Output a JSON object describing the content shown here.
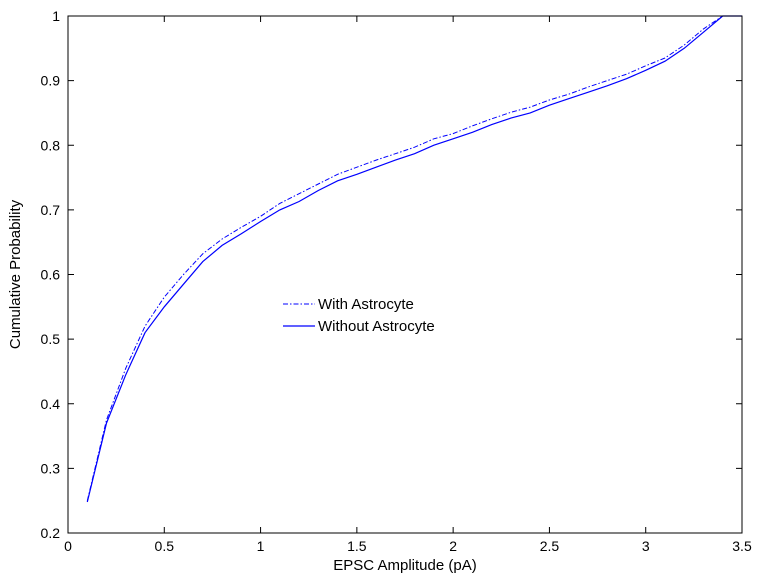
{
  "chart_data": {
    "type": "line",
    "title": "",
    "xlabel": "EPSC Amplitude (pA)",
    "ylabel": "Cumulative Probability",
    "xlim": [
      0,
      3.5
    ],
    "ylim": [
      0.2,
      1
    ],
    "xticks": [
      "0",
      "0.5",
      "1",
      "1.5",
      "2",
      "2.5",
      "3",
      "3.5"
    ],
    "yticks": [
      "0.2",
      "0.3",
      "0.4",
      "0.5",
      "0.6",
      "0.7",
      "0.8",
      "0.9",
      "1"
    ],
    "grid": false,
    "legend_position": "center",
    "series": [
      {
        "name": "With Astrocyte",
        "style": "dash-dot",
        "color": "#0000ff",
        "x": [
          0.1,
          0.2,
          0.3,
          0.4,
          0.5,
          0.6,
          0.7,
          0.8,
          0.9,
          1.0,
          1.1,
          1.2,
          1.3,
          1.4,
          1.5,
          1.6,
          1.7,
          1.8,
          1.9,
          2.0,
          2.1,
          2.2,
          2.3,
          2.4,
          2.5,
          2.6,
          2.7,
          2.8,
          2.9,
          3.0,
          3.1,
          3.2,
          3.3,
          3.4,
          3.5
        ],
        "y": [
          0.25,
          0.375,
          0.455,
          0.52,
          0.565,
          0.6,
          0.632,
          0.655,
          0.673,
          0.69,
          0.71,
          0.725,
          0.74,
          0.755,
          0.766,
          0.777,
          0.787,
          0.797,
          0.81,
          0.818,
          0.83,
          0.841,
          0.851,
          0.859,
          0.87,
          0.879,
          0.89,
          0.9,
          0.91,
          0.923,
          0.935,
          0.955,
          0.98,
          1.0,
          1.0
        ]
      },
      {
        "name": "Without Astrocyte",
        "style": "solid",
        "color": "#0000ff",
        "x": [
          0.1,
          0.2,
          0.3,
          0.4,
          0.5,
          0.6,
          0.7,
          0.8,
          0.9,
          1.0,
          1.1,
          1.2,
          1.3,
          1.4,
          1.5,
          1.6,
          1.7,
          1.8,
          1.9,
          2.0,
          2.1,
          2.2,
          2.3,
          2.4,
          2.5,
          2.6,
          2.7,
          2.8,
          2.9,
          3.0,
          3.1,
          3.2,
          3.3,
          3.4,
          3.5
        ],
        "y": [
          0.248,
          0.37,
          0.445,
          0.51,
          0.55,
          0.585,
          0.62,
          0.645,
          0.663,
          0.682,
          0.7,
          0.713,
          0.73,
          0.745,
          0.755,
          0.766,
          0.777,
          0.787,
          0.8,
          0.81,
          0.82,
          0.832,
          0.842,
          0.85,
          0.862,
          0.872,
          0.882,
          0.892,
          0.903,
          0.916,
          0.93,
          0.95,
          0.975,
          1.0,
          1.0
        ]
      }
    ]
  }
}
